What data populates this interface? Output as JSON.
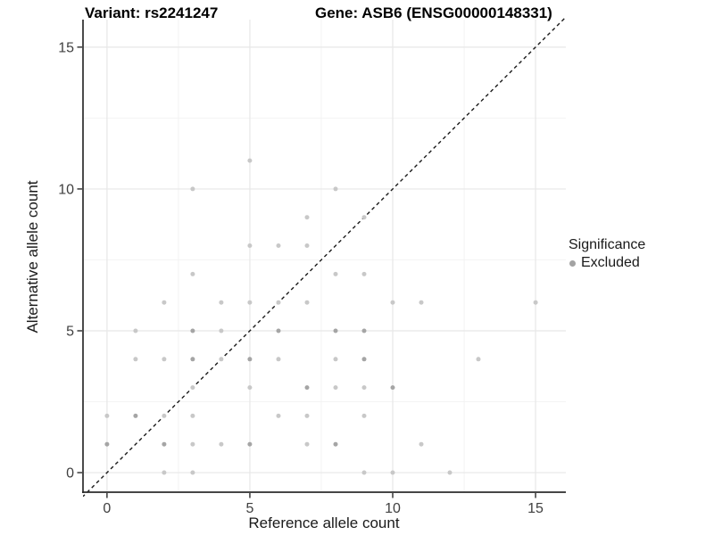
{
  "chart_data": {
    "type": "scatter",
    "titles": {
      "variant": "Variant: rs2241247",
      "gene": "Gene: ASB6 (ENSG00000148331)"
    },
    "xlabel": "Reference allele count",
    "ylabel": "Alternative allele count",
    "xlim": [
      -0.84,
      16.06
    ],
    "ylim": [
      -0.69,
      15.97
    ],
    "x_ticks": [
      0,
      5,
      10,
      15
    ],
    "y_ticks": [
      0,
      5,
      10,
      15
    ],
    "minor_ticks": [
      2.5,
      7.5,
      12.5
    ],
    "grid": true,
    "legend": {
      "position": "right",
      "title": "Significance",
      "items": [
        {
          "label": "Excluded",
          "color": "#a3a3a3"
        }
      ]
    },
    "identity_line": {
      "style": "dashed",
      "color": "#1a1a1a",
      "equation": "y = x"
    },
    "series": [
      {
        "name": "Excluded",
        "color_single": "#c8c8c8",
        "color_overlap": "#a5a5a5",
        "points_format": [
          "reference_allele_count",
          "alternative_allele_count",
          "overlap_weight"
        ],
        "points": [
          [
            0,
            1,
            2
          ],
          [
            0,
            2,
            1
          ],
          [
            1,
            2,
            2
          ],
          [
            1,
            4,
            1
          ],
          [
            1,
            5,
            1
          ],
          [
            2,
            0,
            1
          ],
          [
            2,
            1,
            2
          ],
          [
            2,
            2,
            1
          ],
          [
            2,
            4,
            1
          ],
          [
            2,
            6,
            1
          ],
          [
            3,
            0,
            1
          ],
          [
            3,
            1,
            1
          ],
          [
            3,
            2,
            1
          ],
          [
            3,
            3,
            1
          ],
          [
            3,
            4,
            2
          ],
          [
            3,
            5,
            2
          ],
          [
            3,
            7,
            1
          ],
          [
            3,
            10,
            1
          ],
          [
            4,
            1,
            1
          ],
          [
            4,
            4,
            1
          ],
          [
            4,
            5,
            1
          ],
          [
            4,
            6,
            1
          ],
          [
            5,
            1,
            2
          ],
          [
            5,
            3,
            1
          ],
          [
            5,
            4,
            2
          ],
          [
            5,
            6,
            1
          ],
          [
            5,
            8,
            1
          ],
          [
            5,
            11,
            1
          ],
          [
            6,
            2,
            1
          ],
          [
            6,
            4,
            1
          ],
          [
            6,
            5,
            2
          ],
          [
            6,
            6,
            1
          ],
          [
            6,
            8,
            1
          ],
          [
            7,
            1,
            1
          ],
          [
            7,
            2,
            1
          ],
          [
            7,
            3,
            2
          ],
          [
            7,
            6,
            1
          ],
          [
            7,
            8,
            1
          ],
          [
            7,
            9,
            1
          ],
          [
            8,
            1,
            2
          ],
          [
            8,
            3,
            1
          ],
          [
            8,
            4,
            1
          ],
          [
            8,
            5,
            2
          ],
          [
            8,
            7,
            1
          ],
          [
            8,
            10,
            1
          ],
          [
            9,
            0,
            1
          ],
          [
            9,
            2,
            1
          ],
          [
            9,
            3,
            1
          ],
          [
            9,
            4,
            2
          ],
          [
            9,
            5,
            2
          ],
          [
            9,
            7,
            1
          ],
          [
            9,
            9,
            1
          ],
          [
            10,
            0,
            1
          ],
          [
            10,
            3,
            2
          ],
          [
            10,
            6,
            1
          ],
          [
            11,
            1,
            1
          ],
          [
            11,
            6,
            1
          ],
          [
            12,
            0,
            1
          ],
          [
            13,
            4,
            1
          ],
          [
            15,
            6,
            1
          ]
        ]
      }
    ],
    "colors": {
      "background": "#ffffff",
      "grid_major": "#e7e7e7",
      "grid_minor": "#f2f2f2",
      "axis": "#2b2b2b",
      "tick_text": "#404040"
    }
  }
}
